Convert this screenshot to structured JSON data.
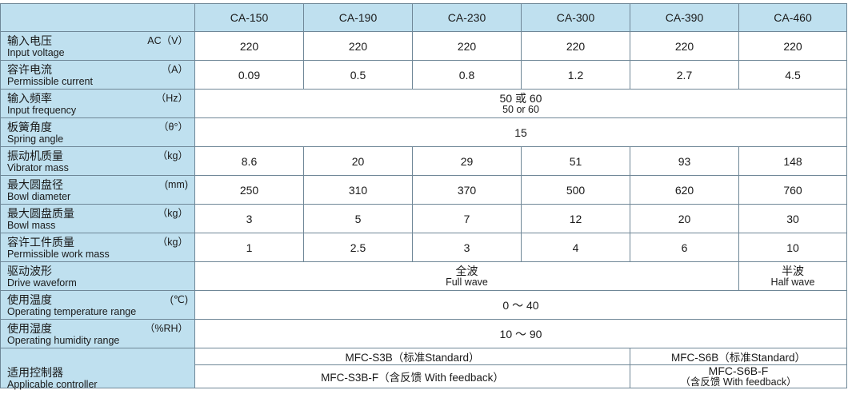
{
  "models": [
    "CA-150",
    "CA-190",
    "CA-230",
    "CA-300",
    "CA-390",
    "CA-460"
  ],
  "rows": {
    "voltage": {
      "zh": "输入电压",
      "en": "Input voltage",
      "unit": "AC（V）",
      "values": [
        "220",
        "220",
        "220",
        "220",
        "220",
        "220"
      ]
    },
    "current": {
      "zh": "容许电流",
      "en": "Permissible current",
      "unit": "（A）",
      "values": [
        "0.09",
        "0.5",
        "0.8",
        "1.2",
        "2.7",
        "4.5"
      ]
    },
    "frequency": {
      "zh": "输入频率",
      "en": "Input frequency",
      "unit": "（Hz）",
      "value_zh": "50 或 60",
      "value_en": "50 or 60"
    },
    "spring_angle": {
      "zh": "板簧角度",
      "en": "Spring angle",
      "unit": "（θ°）",
      "value": "15"
    },
    "vibrator_mass": {
      "zh": "振动机质量",
      "en": "Vibrator mass",
      "unit": "（kg）",
      "values": [
        "8.6",
        "20",
        "29",
        "51",
        "93",
        "148"
      ]
    },
    "bowl_diameter": {
      "zh": "最大圆盘径",
      "en": "Bowl diameter",
      "unit": "(mm)",
      "values": [
        "250",
        "310",
        "370",
        "500",
        "620",
        "760"
      ]
    },
    "bowl_mass": {
      "zh": "最大圆盘质量",
      "en": "Bowl mass",
      "unit": "（kg）",
      "values": [
        "3",
        "5",
        "7",
        "12",
        "20",
        "30"
      ]
    },
    "work_mass": {
      "zh": "容许工件质量",
      "en": "Permissible work mass",
      "unit": "（kg）",
      "values": [
        "1",
        "2.5",
        "3",
        "4",
        "6",
        "10"
      ]
    },
    "waveform": {
      "zh": "驱动波形",
      "en": "Drive waveform",
      "unit": "",
      "full_zh": "全波",
      "full_en": "Full wave",
      "half_zh": "半波",
      "half_en": "Half wave"
    },
    "temperature": {
      "zh": "使用温度",
      "en": "Operating temperature range",
      "unit": "(℃)",
      "value": "0 ～ 40"
    },
    "humidity": {
      "zh": "使用湿度",
      "en": "Operating humidity range",
      "unit": "（%RH）",
      "value": "10 ～ 90"
    },
    "controller": {
      "zh": "适用控制器",
      "en": "Applicable controller",
      "std_a": "MFC-S3B（标准Standard）",
      "std_b": "MFC-S6B（标准Standard）",
      "fb_a": "MFC-S3B-F（含反馈  With feedback）",
      "fb_b_l1": "MFC-S6B-F",
      "fb_b_l2": "（含反馈  With feedback）"
    }
  }
}
